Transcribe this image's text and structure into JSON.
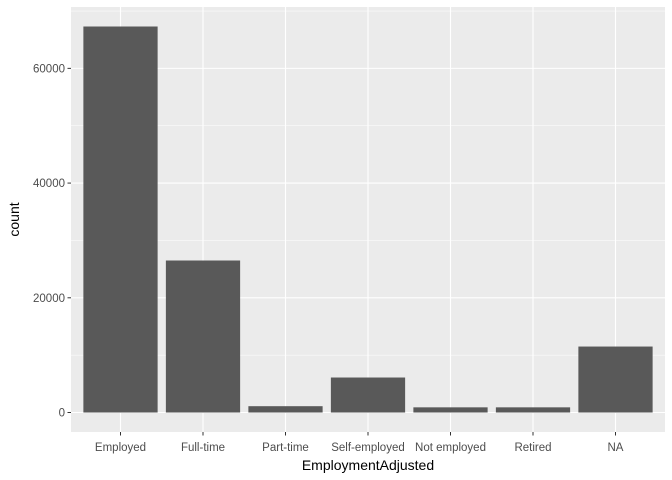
{
  "chart_data": {
    "type": "bar",
    "title": "",
    "xlabel": "EmploymentAdjusted",
    "ylabel": "count",
    "categories": [
      "Employed",
      "Full-time",
      "Part-time",
      "Self-employed",
      "Not employed",
      "Retired",
      "NA"
    ],
    "values": [
      67300,
      26500,
      1100,
      6100,
      900,
      900,
      11500
    ],
    "ylim": [
      -3400,
      70700
    ],
    "yticks": [
      0,
      20000,
      40000,
      60000
    ],
    "ytick_labels": [
      "0",
      "20000",
      "40000",
      "60000"
    ],
    "grid": true,
    "legend": "none"
  },
  "colors": {
    "panel": "#ebebeb",
    "grid_major": "#ffffff",
    "bar": "#595959",
    "tick_text": "#4d4d4d",
    "tick_mark": "#333333"
  }
}
